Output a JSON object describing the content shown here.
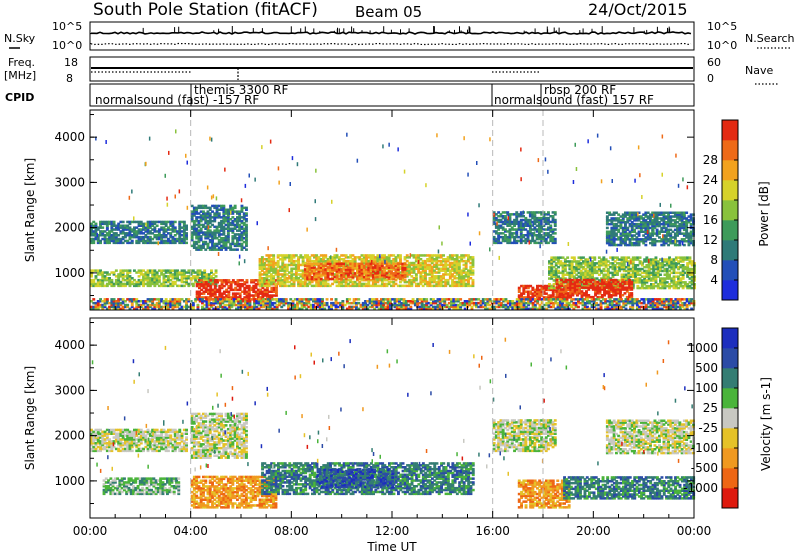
{
  "header": {
    "station": "South Pole Station (fitACF)",
    "beam": "Beam 05",
    "date": "24/Oct/2015"
  },
  "strip_labels": {
    "nsky": "N.Sky",
    "nsky_hi": "10^5",
    "nsky_lo": "10^0",
    "nsearch": "N.Search",
    "freq_l1": "Freq.",
    "freq_l2": "[MHz]",
    "freq_hi": "18",
    "freq_lo": "8",
    "nave": "Nave",
    "nave_hi": "60",
    "nave_lo": "0",
    "cpid": "CPID"
  },
  "cpid_labels": [
    {
      "text": "normalsound (fast) -157 RF",
      "row": 1
    },
    {
      "text": "themis 3300 RF",
      "row": 0
    },
    {
      "text": "normalsound (fast) 157 RF",
      "row": 1
    },
    {
      "text": "rbsp 200 RF",
      "row": 0
    }
  ],
  "chart_data": [
    {
      "type": "heatmap",
      "quantity": "Power",
      "colorbar_label": "Power [dB]",
      "colorbar_ticks": [
        "4",
        "8",
        "12",
        "16",
        "20",
        "24",
        "28"
      ],
      "colorscale": [
        "#1e2ddc",
        "#234fb8",
        "#2f7a78",
        "#3e9b5a",
        "#89c23c",
        "#d6d22a",
        "#f2a21e",
        "#ee6a18",
        "#e42a12"
      ],
      "xlabel": "Time UT",
      "ylabel": "Slant Range [km]",
      "xlim": [
        "00:00",
        "24:00"
      ],
      "ylim": [
        180,
        4600
      ],
      "x_ticks": [
        "00:00",
        "04:00",
        "08:00",
        "12:00",
        "16:00",
        "20:00",
        "00:00"
      ],
      "y_ticks": [
        "1000",
        "2000",
        "3000",
        "4000"
      ],
      "mode_change_times_ut": [
        4.0,
        16.0,
        18.0
      ],
      "regions": [
        {
          "t0": 0.0,
          "t1": 3.8,
          "r0": 1650,
          "r1": 2150,
          "level": 2
        },
        {
          "t0": 4.0,
          "t1": 6.2,
          "r0": 1500,
          "r1": 2500,
          "level": 2
        },
        {
          "t0": 0.0,
          "t1": 5.0,
          "r0": 700,
          "r1": 1050,
          "level": 4
        },
        {
          "t0": 4.2,
          "t1": 7.4,
          "r0": 400,
          "r1": 850,
          "level": 8
        },
        {
          "t0": 6.7,
          "t1": 15.2,
          "r0": 700,
          "r1": 1400,
          "level": 5
        },
        {
          "t0": 8.5,
          "t1": 12.5,
          "r0": 850,
          "r1": 1200,
          "level": 7
        },
        {
          "t0": 16.0,
          "t1": 18.5,
          "r0": 1650,
          "r1": 2350,
          "level": 2
        },
        {
          "t0": 17.0,
          "t1": 19.0,
          "r0": 400,
          "r1": 700,
          "level": 8
        },
        {
          "t0": 18.2,
          "t1": 24.0,
          "r0": 650,
          "r1": 1350,
          "level": 4
        },
        {
          "t0": 18.5,
          "t1": 21.5,
          "r0": 450,
          "r1": 850,
          "level": 8
        },
        {
          "t0": 20.5,
          "t1": 24.0,
          "r0": 1600,
          "r1": 2350,
          "level": 2
        },
        {
          "t0": 0.0,
          "t1": 24.0,
          "r0": 190,
          "r1": 420,
          "level": 0
        }
      ]
    },
    {
      "type": "heatmap",
      "quantity": "Velocity",
      "colorbar_label": "Velocity [m s-1]",
      "colorbar_ticks": [
        "1000",
        "500",
        "100",
        "25",
        "-25",
        "-100",
        "-500",
        "-1000"
      ],
      "colorscale": [
        "#1c2ebe",
        "#2b4ba6",
        "#347d73",
        "#4ab43a",
        "#c8c8c2",
        "#e5c228",
        "#f09920",
        "#ee6614",
        "#de1a0e"
      ],
      "xlabel": "Time UT",
      "ylabel": "Slant Range [km]",
      "xlim": [
        "00:00",
        "24:00"
      ],
      "ylim": [
        180,
        4600
      ],
      "x_ticks": [
        "00:00",
        "04:00",
        "08:00",
        "12:00",
        "16:00",
        "20:00",
        "00:00"
      ],
      "y_ticks": [
        "1000",
        "2000",
        "3000",
        "4000"
      ],
      "mode_change_times_ut": [
        4.0,
        16.0,
        18.0
      ],
      "regions": [
        {
          "t0": 0.0,
          "t1": 3.8,
          "r0": 1650,
          "r1": 2150,
          "level": 4
        },
        {
          "t0": 4.0,
          "t1": 6.2,
          "r0": 1500,
          "r1": 2500,
          "level": 4
        },
        {
          "t0": 0.5,
          "t1": 3.5,
          "r0": 700,
          "r1": 1050,
          "level": 3
        },
        {
          "t0": 4.0,
          "t1": 7.4,
          "r0": 400,
          "r1": 1100,
          "level": 6
        },
        {
          "t0": 6.8,
          "t1": 15.2,
          "r0": 700,
          "r1": 1400,
          "level": 2
        },
        {
          "t0": 9.0,
          "t1": 12.0,
          "r0": 850,
          "r1": 1250,
          "level": 1
        },
        {
          "t0": 16.0,
          "t1": 18.5,
          "r0": 1650,
          "r1": 2350,
          "level": 4
        },
        {
          "t0": 17.0,
          "t1": 19.0,
          "r0": 400,
          "r1": 1000,
          "level": 6
        },
        {
          "t0": 18.8,
          "t1": 24.0,
          "r0": 600,
          "r1": 1100,
          "level": 2
        },
        {
          "t0": 20.5,
          "t1": 24.0,
          "r0": 1600,
          "r1": 2350,
          "level": 4
        }
      ]
    }
  ]
}
